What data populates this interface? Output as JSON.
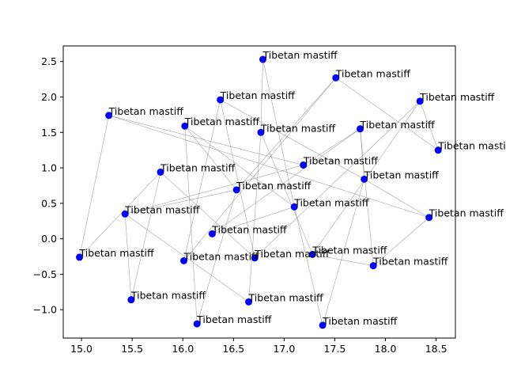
{
  "chart_data": {
    "type": "scatter",
    "title": "",
    "xlabel": "",
    "ylabel": "",
    "xlim": [
      14.82,
      18.69
    ],
    "ylim": [
      -1.4,
      2.72
    ],
    "x_ticks": [
      15.0,
      15.5,
      16.0,
      16.5,
      17.0,
      17.5,
      18.0,
      18.5
    ],
    "x_tick_labels": [
      "15.0",
      "15.5",
      "16.0",
      "16.5",
      "17.0",
      "17.5",
      "18.0",
      "18.5"
    ],
    "y_ticks": [
      -1.0,
      -0.5,
      0.0,
      0.5,
      1.0,
      1.5,
      2.0,
      2.5
    ],
    "y_tick_labels": [
      "−1.0",
      "−0.5",
      "0.0",
      "0.5",
      "1.0",
      "1.5",
      "2.0",
      "2.5"
    ],
    "grid": false,
    "point_color": "#0000ff",
    "edge_color": "#888888",
    "points": [
      {
        "x": 16.79,
        "y": 2.53,
        "label": "Tibetan mastiff"
      },
      {
        "x": 17.51,
        "y": 2.27,
        "label": "Tibetan mastiff"
      },
      {
        "x": 16.37,
        "y": 1.96,
        "label": "Tibetan mastiff"
      },
      {
        "x": 18.34,
        "y": 1.94,
        "label": "Tibetan mastiff"
      },
      {
        "x": 15.27,
        "y": 1.74,
        "label": "Tibetan mastiff"
      },
      {
        "x": 16.02,
        "y": 1.59,
        "label": "Tibetan mastiff"
      },
      {
        "x": 17.75,
        "y": 1.55,
        "label": "Tibetan mastiff"
      },
      {
        "x": 16.77,
        "y": 1.5,
        "label": "Tibetan mastiff"
      },
      {
        "x": 18.52,
        "y": 1.25,
        "label": "Tibetan mastiff"
      },
      {
        "x": 17.19,
        "y": 1.04,
        "label": "Tibetan mastiff"
      },
      {
        "x": 15.78,
        "y": 0.94,
        "label": "Tibetan mastiff"
      },
      {
        "x": 17.79,
        "y": 0.84,
        "label": "Tibetan mastiff"
      },
      {
        "x": 16.53,
        "y": 0.69,
        "label": "Tibetan mastiff"
      },
      {
        "x": 17.1,
        "y": 0.45,
        "label": "Tibetan mastiff"
      },
      {
        "x": 15.43,
        "y": 0.35,
        "label": "Tibetan mastiff"
      },
      {
        "x": 18.43,
        "y": 0.3,
        "label": "Tibetan mastiff"
      },
      {
        "x": 16.29,
        "y": 0.07,
        "label": "Tibetan mastiff"
      },
      {
        "x": 17.28,
        "y": -0.22,
        "label": "Tibetan mastiff"
      },
      {
        "x": 14.98,
        "y": -0.26,
        "label": "Tibetan mastiff"
      },
      {
        "x": 16.71,
        "y": -0.27,
        "label": "Tibetan mastiff"
      },
      {
        "x": 16.01,
        "y": -0.31,
        "label": "Tibetan mastiff"
      },
      {
        "x": 17.88,
        "y": -0.38,
        "label": "Tibetan mastiff"
      },
      {
        "x": 15.49,
        "y": -0.86,
        "label": "Tibetan mastiff"
      },
      {
        "x": 16.65,
        "y": -0.89,
        "label": "Tibetan mastiff"
      },
      {
        "x": 16.14,
        "y": -1.2,
        "label": "Tibetan mastiff"
      },
      {
        "x": 17.38,
        "y": -1.22,
        "label": "Tibetan mastiff"
      }
    ],
    "edges": [
      [
        0,
        7
      ],
      [
        0,
        13
      ],
      [
        1,
        12
      ],
      [
        1,
        20
      ],
      [
        2,
        11
      ],
      [
        2,
        19
      ],
      [
        3,
        19
      ],
      [
        3,
        17
      ],
      [
        3,
        8
      ],
      [
        4,
        15
      ],
      [
        4,
        9
      ],
      [
        4,
        18
      ],
      [
        5,
        24
      ],
      [
        5,
        13
      ],
      [
        6,
        11
      ],
      [
        6,
        21
      ],
      [
        6,
        16
      ],
      [
        7,
        17
      ],
      [
        7,
        23
      ],
      [
        9,
        14
      ],
      [
        9,
        6
      ],
      [
        10,
        22
      ],
      [
        10,
        18
      ],
      [
        11,
        25
      ],
      [
        12,
        5
      ],
      [
        12,
        14
      ],
      [
        12,
        24
      ],
      [
        16,
        13
      ],
      [
        17,
        21
      ],
      [
        19,
        10
      ],
      [
        20,
        2
      ],
      [
        22,
        14
      ],
      [
        23,
        14
      ],
      [
        25,
        13
      ],
      [
        15,
        11
      ],
      [
        21,
        15
      ],
      [
        8,
        1
      ]
    ]
  }
}
